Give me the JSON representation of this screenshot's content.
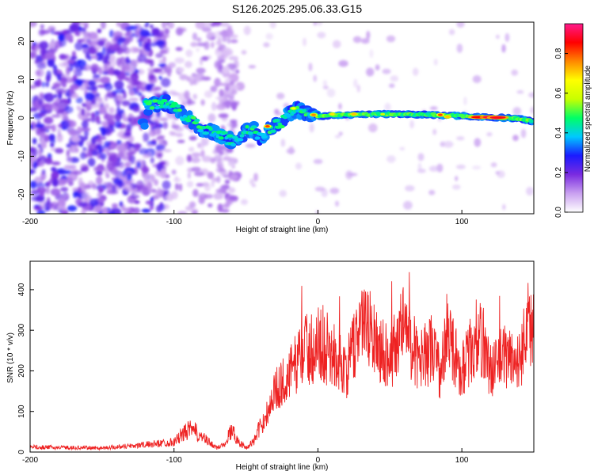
{
  "title": "S126.2025.295.06.33.G15",
  "chart_data": [
    {
      "type": "heatmap",
      "panel": "top",
      "xlabel": "Height of straight line (km)",
      "ylabel": "Frequency (Hz)",
      "xlim": [
        -200,
        150
      ],
      "ylim": [
        -25,
        25
      ],
      "xticks": [
        -200,
        -100,
        0,
        100
      ],
      "yticks": [
        -20,
        -10,
        0,
        10,
        20
      ],
      "colorbar": {
        "label": "Normalized spectral amplitude",
        "range": [
          0,
          0.95
        ],
        "ticks": [
          "0.0",
          "0.2",
          "0.4",
          "0.6",
          "0.8"
        ],
        "colors": [
          "#ffffff",
          "#c9a0f0",
          "#7a2be0",
          "#1a1aff",
          "#00c8ff",
          "#00ff66",
          "#c8ff00",
          "#ffff00",
          "#ff8800",
          "#ff0000",
          "#ff1a8c"
        ]
      },
      "ridge": {
        "description": "dominant frequency track",
        "points": [
          [
            -120,
            3
          ],
          [
            -110,
            3.5
          ],
          [
            -105,
            4
          ],
          [
            -100,
            3
          ],
          [
            -95,
            1
          ],
          [
            -90,
            0
          ],
          [
            -85,
            -1.5
          ],
          [
            -80,
            -3
          ],
          [
            -75,
            -3.5
          ],
          [
            -70,
            -4
          ],
          [
            -65,
            -5
          ],
          [
            -60,
            -6
          ],
          [
            -55,
            -5
          ],
          [
            -50,
            -3
          ],
          [
            -45,
            -3
          ],
          [
            -40,
            -5
          ],
          [
            -35,
            -3
          ],
          [
            -30,
            -2
          ],
          [
            -25,
            -1
          ],
          [
            -20,
            1
          ],
          [
            -15,
            2.5
          ],
          [
            -10,
            1.5
          ],
          [
            -5,
            1
          ],
          [
            0,
            0.5
          ],
          [
            20,
            0.8
          ],
          [
            50,
            1
          ],
          [
            80,
            0.8
          ],
          [
            100,
            0.5
          ],
          [
            120,
            0.2
          ],
          [
            140,
            -0.2
          ],
          [
            150,
            -1
          ]
        ]
      }
    },
    {
      "type": "line",
      "panel": "bottom",
      "xlabel": "Height of straight line (km)",
      "ylabel": "SNR (10 * v/v)",
      "xlim": [
        -200,
        150
      ],
      "ylim": [
        0,
        470
      ],
      "xticks": [
        -200,
        -100,
        0,
        100
      ],
      "yticks": [
        0,
        100,
        200,
        300,
        400
      ],
      "color": "#ee2222",
      "series": [
        {
          "name": "SNR",
          "envelope_x": [
            -200,
            -150,
            -120,
            -100,
            -90,
            -85,
            -80,
            -70,
            -65,
            -60,
            -55,
            -50,
            -45,
            -40,
            -35,
            -30,
            -25,
            -20,
            -15,
            -10,
            -5,
            0,
            10,
            20,
            25,
            30,
            40,
            50,
            60,
            70,
            80,
            85,
            90,
            95,
            100,
            110,
            115,
            120,
            130,
            140,
            145,
            150
          ],
          "envelope_y": [
            12,
            10,
            18,
            25,
            55,
            50,
            35,
            10,
            20,
            55,
            25,
            10,
            25,
            60,
            100,
            150,
            170,
            190,
            220,
            260,
            250,
            270,
            240,
            200,
            260,
            320,
            280,
            230,
            320,
            220,
            260,
            190,
            290,
            240,
            200,
            280,
            270,
            200,
            240,
            220,
            320,
            300
          ]
        }
      ]
    }
  ]
}
